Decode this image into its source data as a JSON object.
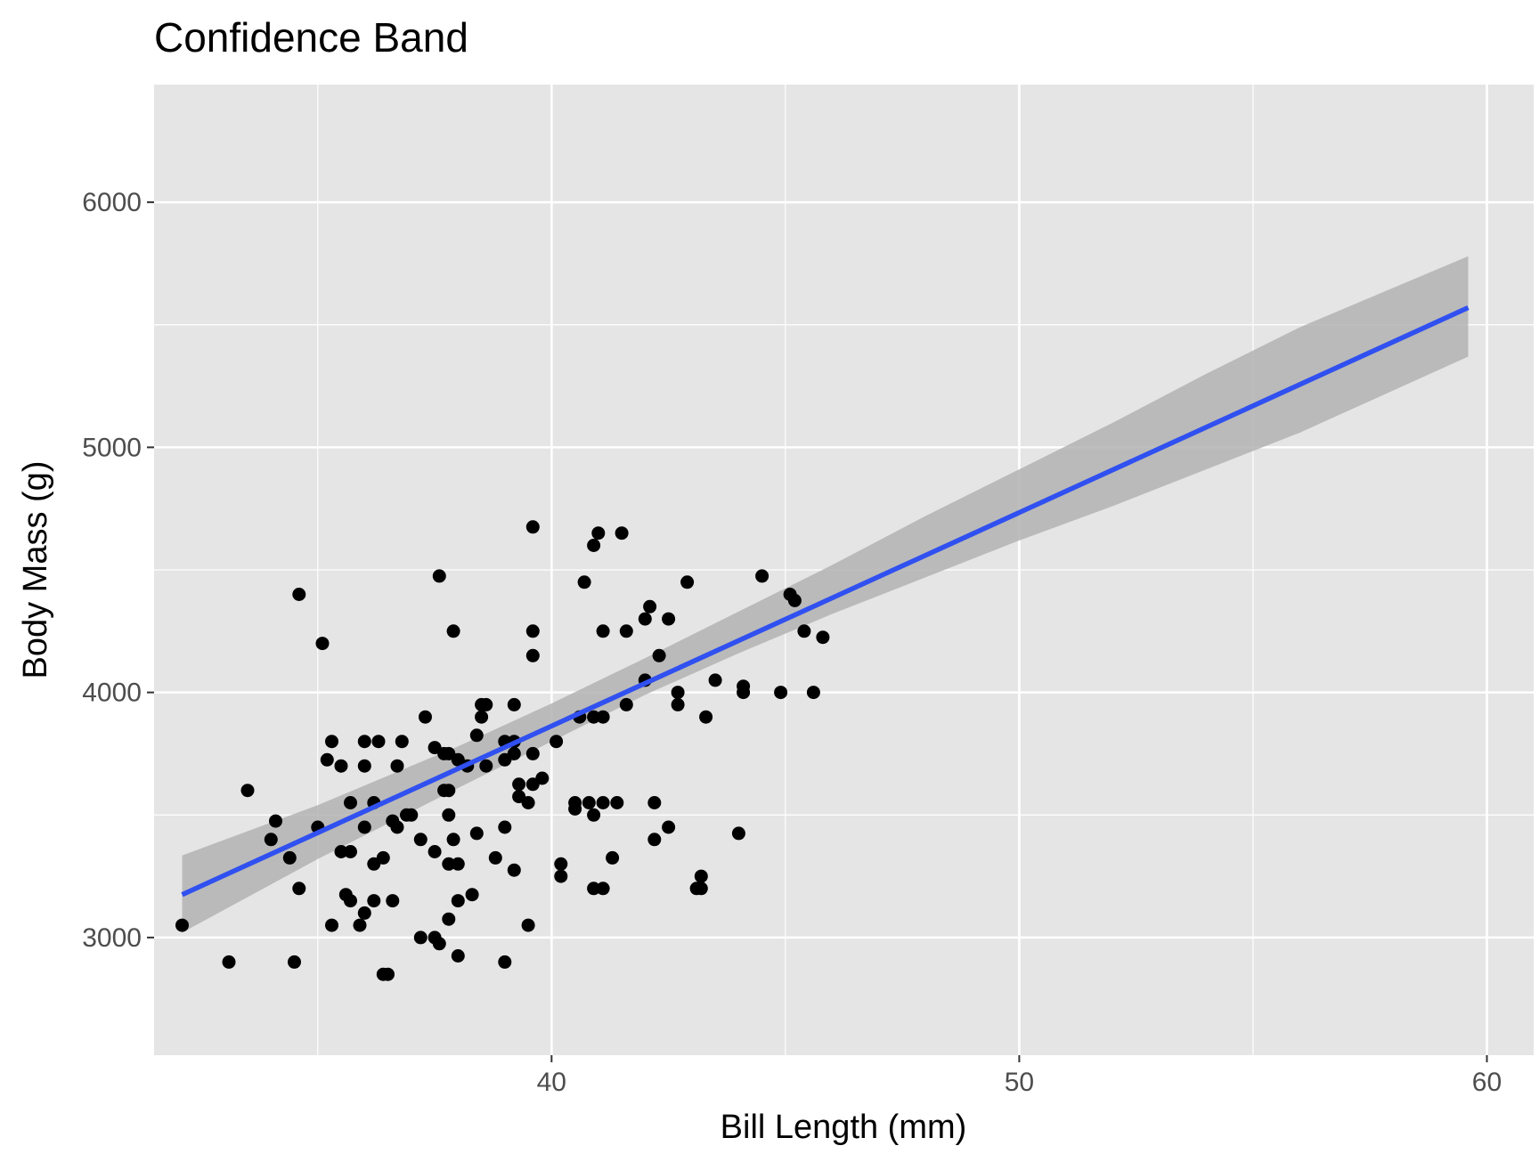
{
  "chart_data": {
    "type": "scatter",
    "title": "Confidence Band",
    "xlabel": "Bill Length (mm)",
    "ylabel": "Body Mass (g)",
    "xlim": [
      31.5,
      61.0
    ],
    "ylim": [
      2520,
      6480
    ],
    "x_ticks": [
      40,
      50,
      60
    ],
    "x_tick_labels": [
      "40",
      "50",
      "60"
    ],
    "y_ticks": [
      3000,
      4000,
      5000,
      6000
    ],
    "y_tick_labels": [
      "3000",
      "4000",
      "5000",
      "6000"
    ],
    "grid": true,
    "legend": "none",
    "colors": {
      "panel_background": "#e5e5e5",
      "grid_line": "#ffffff",
      "points": "#000000",
      "fit_line": "#3050f0",
      "confidence_band": "#b3b3b3"
    },
    "fit_line": {
      "x": [
        32.1,
        59.6
      ],
      "y": [
        3175,
        5570
      ]
    },
    "confidence_band": {
      "x": [
        32.1,
        35,
        38,
        40,
        42,
        44,
        46,
        48,
        50,
        52,
        54,
        56,
        59.6
      ],
      "lower": [
        3020,
        3320,
        3610,
        3800,
        3990,
        4160,
        4320,
        4470,
        4620,
        4760,
        4910,
        5060,
        5370
      ],
      "upper": [
        3335,
        3540,
        3780,
        3955,
        4140,
        4330,
        4520,
        4720,
        4910,
        5100,
        5300,
        5490,
        5780
      ]
    },
    "points": [
      [
        32.1,
        3050
      ],
      [
        33.1,
        2900
      ],
      [
        33.5,
        3600
      ],
      [
        34.0,
        3400
      ],
      [
        34.1,
        3475
      ],
      [
        34.4,
        3325
      ],
      [
        34.5,
        2900
      ],
      [
        34.6,
        3200
      ],
      [
        34.6,
        4400
      ],
      [
        35.0,
        3450
      ],
      [
        35.1,
        4200
      ],
      [
        35.2,
        3725
      ],
      [
        35.3,
        3800
      ],
      [
        35.3,
        3050
      ],
      [
        35.5,
        3700
      ],
      [
        35.5,
        3350
      ],
      [
        35.6,
        3175
      ],
      [
        35.7,
        3150
      ],
      [
        35.7,
        3350
      ],
      [
        35.7,
        3550
      ],
      [
        35.9,
        3050
      ],
      [
        36.0,
        3100
      ],
      [
        36.0,
        3450
      ],
      [
        36.0,
        3800
      ],
      [
        36.0,
        3700
      ],
      [
        36.2,
        3550
      ],
      [
        36.2,
        3300
      ],
      [
        36.2,
        3150
      ],
      [
        36.3,
        3800
      ],
      [
        36.4,
        2850
      ],
      [
        36.4,
        3325
      ],
      [
        36.5,
        2850
      ],
      [
        36.6,
        3150
      ],
      [
        36.6,
        3475
      ],
      [
        36.7,
        3700
      ],
      [
        36.7,
        3450
      ],
      [
        36.8,
        3800
      ],
      [
        36.9,
        3500
      ],
      [
        37.0,
        3500
      ],
      [
        37.2,
        3000
      ],
      [
        37.2,
        3400
      ],
      [
        37.3,
        3900
      ],
      [
        37.5,
        3000
      ],
      [
        37.5,
        3350
      ],
      [
        37.5,
        3775
      ],
      [
        37.6,
        2975
      ],
      [
        37.6,
        4475
      ],
      [
        37.7,
        3600
      ],
      [
        37.7,
        3750
      ],
      [
        37.8,
        3300
      ],
      [
        37.8,
        3075
      ],
      [
        37.8,
        3500
      ],
      [
        37.8,
        3750
      ],
      [
        37.8,
        3600
      ],
      [
        37.9,
        3400
      ],
      [
        37.9,
        4250
      ],
      [
        38.0,
        3725
      ],
      [
        38.0,
        3150
      ],
      [
        38.0,
        2925
      ],
      [
        38.0,
        3300
      ],
      [
        38.2,
        3700
      ],
      [
        38.3,
        3175
      ],
      [
        38.4,
        3825
      ],
      [
        38.4,
        3425
      ],
      [
        38.5,
        3900
      ],
      [
        38.5,
        3950
      ],
      [
        38.6,
        3950
      ],
      [
        38.6,
        3700
      ],
      [
        38.8,
        3325
      ],
      [
        39.0,
        2900
      ],
      [
        39.0,
        3800
      ],
      [
        39.0,
        3450
      ],
      [
        39.0,
        3725
      ],
      [
        39.2,
        3950
      ],
      [
        39.2,
        3275
      ],
      [
        39.2,
        3750
      ],
      [
        39.2,
        3800
      ],
      [
        39.3,
        3625
      ],
      [
        39.3,
        3575
      ],
      [
        39.5,
        3050
      ],
      [
        39.5,
        3550
      ],
      [
        39.6,
        3625
      ],
      [
        39.6,
        3750
      ],
      [
        39.6,
        4150
      ],
      [
        39.6,
        4250
      ],
      [
        39.6,
        4675
      ],
      [
        39.8,
        3650
      ],
      [
        40.1,
        3800
      ],
      [
        40.2,
        3300
      ],
      [
        40.2,
        3250
      ],
      [
        40.5,
        3550
      ],
      [
        40.5,
        3525
      ],
      [
        40.6,
        3900
      ],
      [
        40.7,
        4450
      ],
      [
        40.8,
        3550
      ],
      [
        40.9,
        4600
      ],
      [
        40.9,
        3200
      ],
      [
        40.9,
        3500
      ],
      [
        40.9,
        3900
      ],
      [
        41.0,
        4650
      ],
      [
        41.1,
        3200
      ],
      [
        41.1,
        3550
      ],
      [
        41.1,
        4250
      ],
      [
        41.1,
        3900
      ],
      [
        41.3,
        3325
      ],
      [
        41.4,
        3550
      ],
      [
        41.5,
        4650
      ],
      [
        41.6,
        3950
      ],
      [
        41.6,
        4250
      ],
      [
        42.0,
        4300
      ],
      [
        42.0,
        4050
      ],
      [
        42.1,
        4350
      ],
      [
        42.2,
        3550
      ],
      [
        42.2,
        3400
      ],
      [
        42.3,
        4150
      ],
      [
        42.5,
        3450
      ],
      [
        42.5,
        4300
      ],
      [
        42.7,
        3950
      ],
      [
        42.7,
        4000
      ],
      [
        42.9,
        4450
      ],
      [
        43.1,
        3200
      ],
      [
        43.2,
        3250
      ],
      [
        43.2,
        3200
      ],
      [
        43.3,
        3900
      ],
      [
        43.5,
        4050
      ],
      [
        44.0,
        3425
      ],
      [
        44.1,
        4025
      ],
      [
        44.1,
        4000
      ],
      [
        44.5,
        4475
      ],
      [
        44.9,
        4000
      ],
      [
        45.1,
        4400
      ],
      [
        45.2,
        4375
      ],
      [
        45.4,
        4250
      ],
      [
        45.6,
        4000
      ],
      [
        45.8,
        4225
      ]
    ]
  }
}
